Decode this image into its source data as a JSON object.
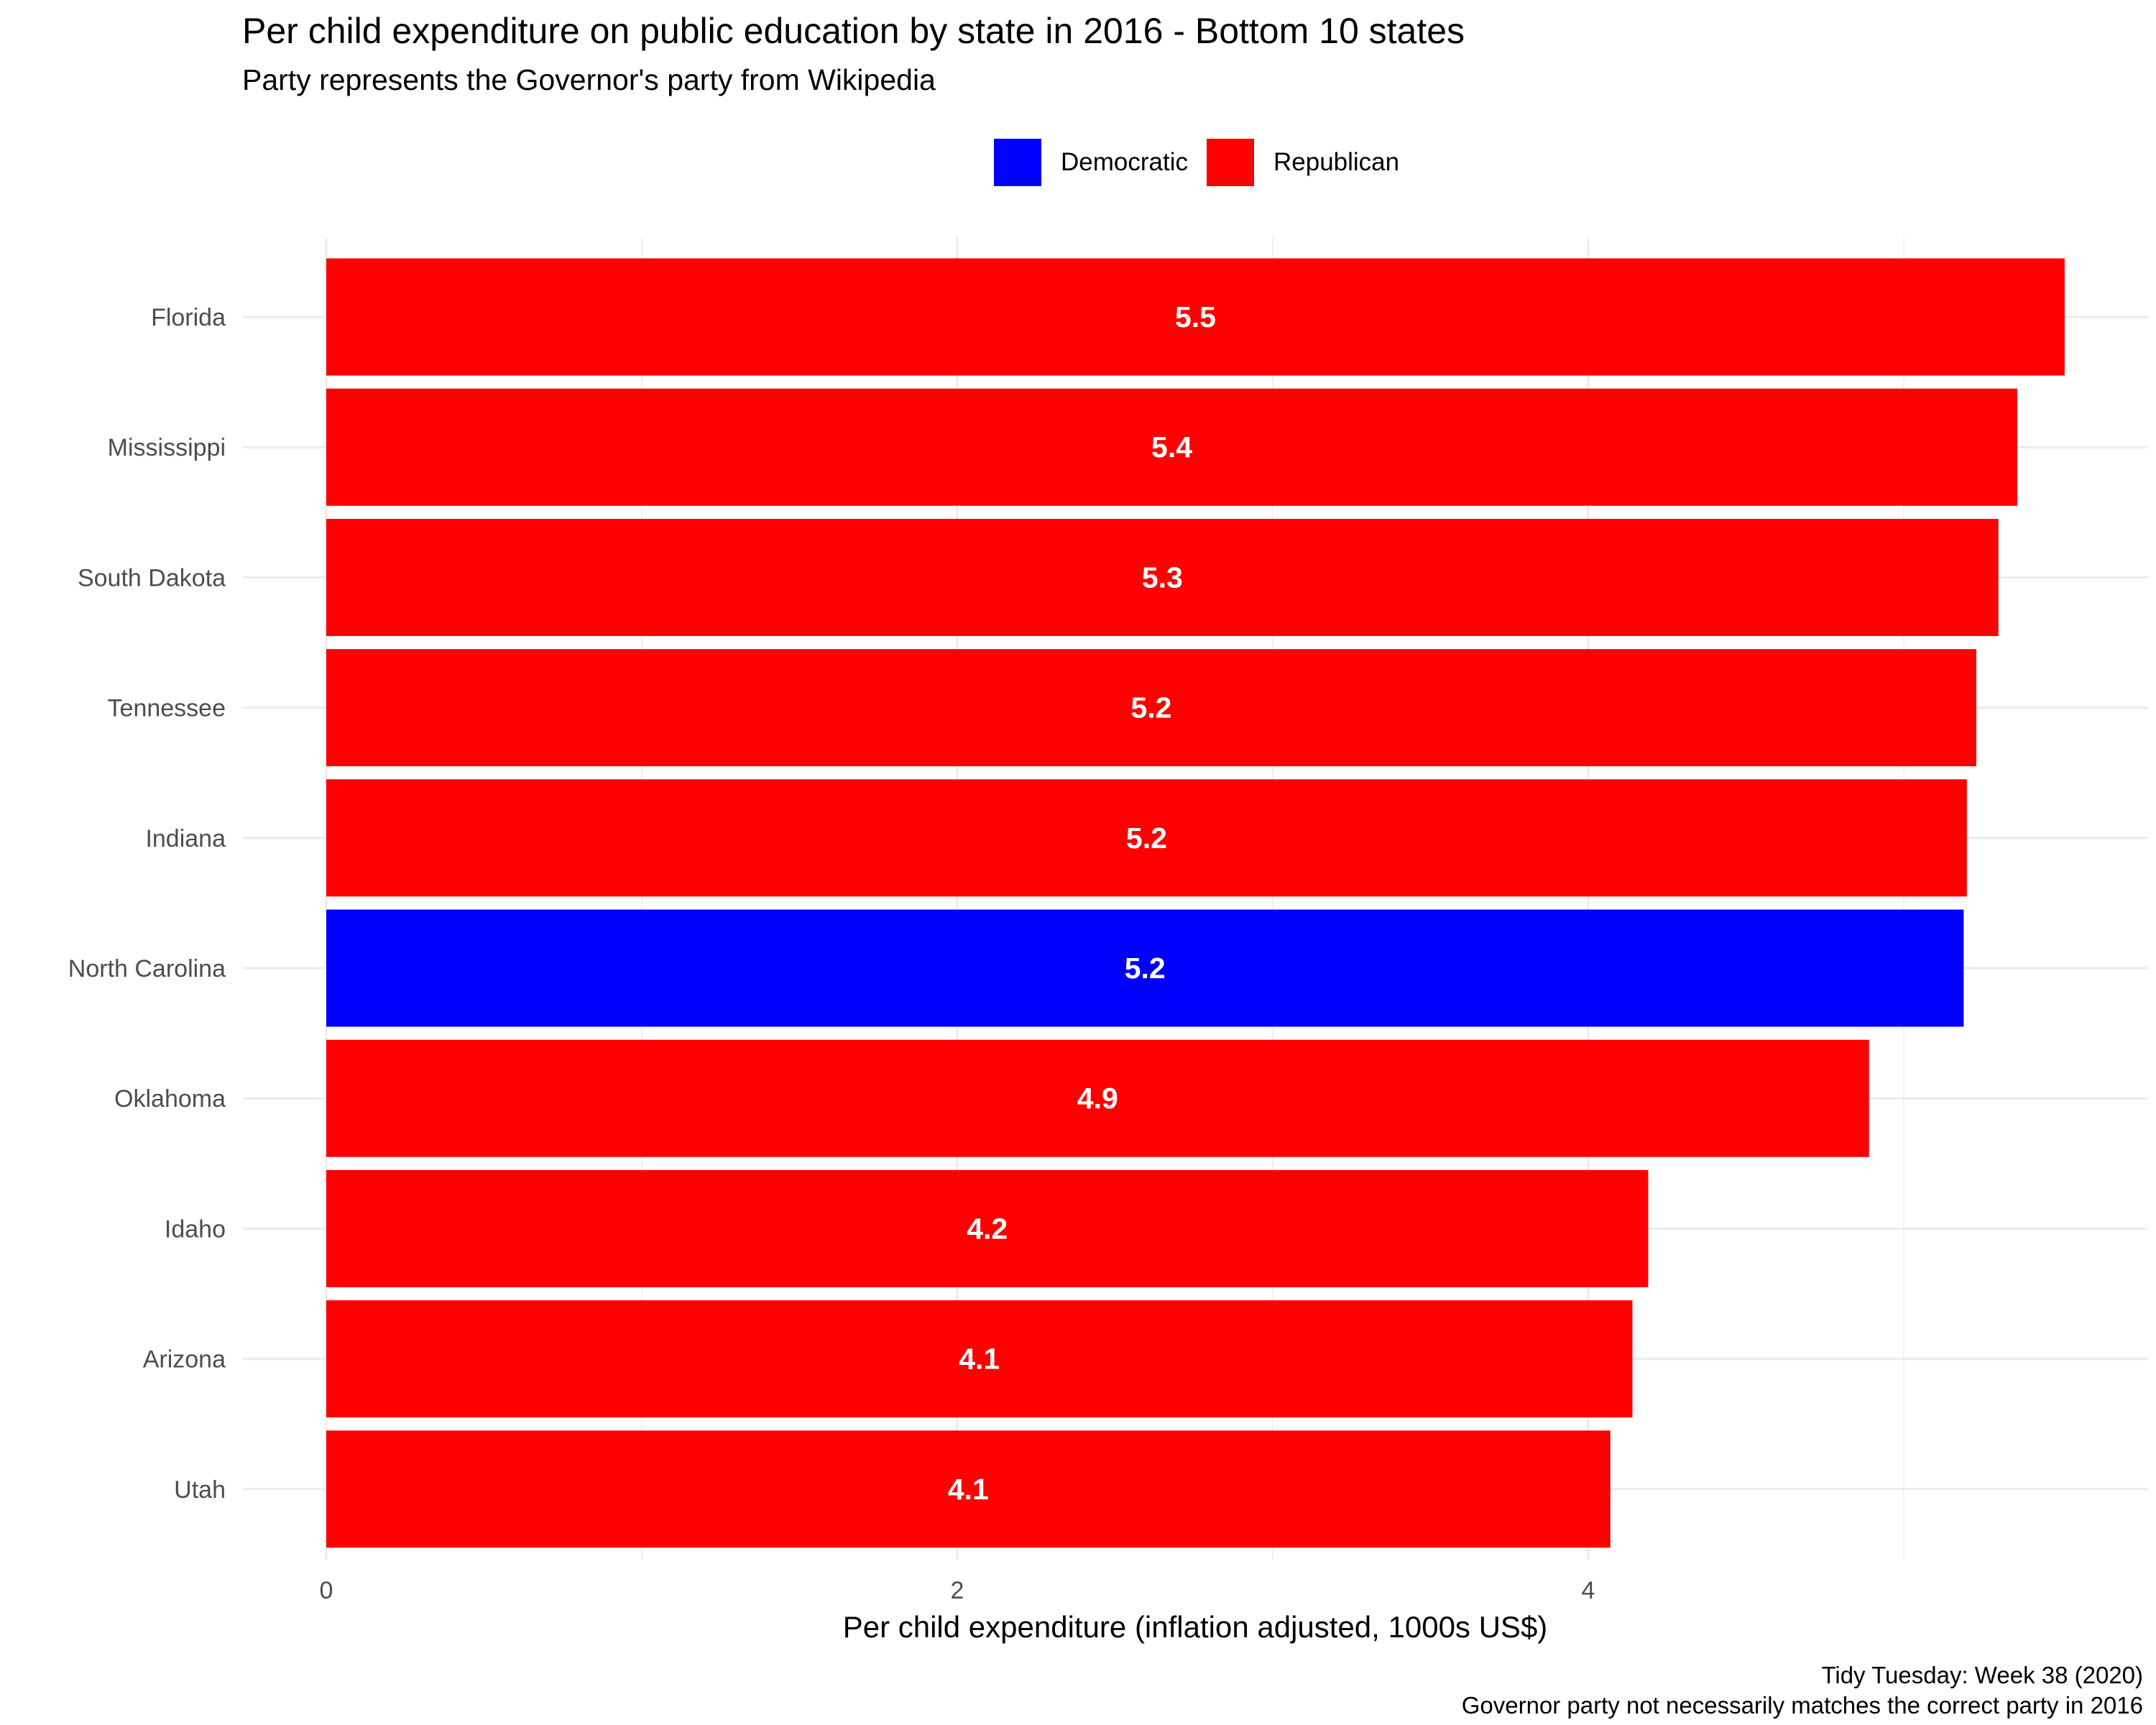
{
  "title": "Per child expenditure on public education by state in 2016 - Bottom 10 states",
  "subtitle": "Party represents the Governor's party from Wikipedia",
  "legend": [
    {
      "label": "Democratic",
      "color": "#0000FF"
    },
    {
      "label": "Republican",
      "color": "#FF0000"
    }
  ],
  "caption": {
    "line1": "Tidy Tuesday: Week 38 (2020)",
    "line2": "Governor party not necessarily matches the correct party in 2016"
  },
  "chart_data": {
    "type": "bar",
    "orientation": "horizontal",
    "title": "Per child expenditure on public education by state in 2016 - Bottom 10 states",
    "subtitle": "Party represents the Governor's party from Wikipedia",
    "xlabel": "Per child expenditure (inflation adjusted, 1000s US$)",
    "ylabel": "",
    "xlim": [
      0,
      5.75
    ],
    "xticks": [
      0,
      2,
      4
    ],
    "grid": true,
    "legend_position": "top",
    "categories": [
      "Florida",
      "Mississippi",
      "South Dakota",
      "Tennessee",
      "Indiana",
      "North Carolina",
      "Oklahoma",
      "Idaho",
      "Arizona",
      "Utah"
    ],
    "values": [
      5.51,
      5.36,
      5.3,
      5.23,
      5.2,
      5.19,
      4.89,
      4.19,
      4.14,
      4.07
    ],
    "labels": [
      "5.5",
      "5.4",
      "5.3",
      "5.2",
      "5.2",
      "5.2",
      "4.9",
      "4.2",
      "4.1",
      "4.1"
    ],
    "party": [
      "Republican",
      "Republican",
      "Republican",
      "Republican",
      "Republican",
      "Democratic",
      "Republican",
      "Republican",
      "Republican",
      "Republican"
    ],
    "colors": {
      "Democratic": "#0000FF",
      "Republican": "#FF0000"
    }
  }
}
